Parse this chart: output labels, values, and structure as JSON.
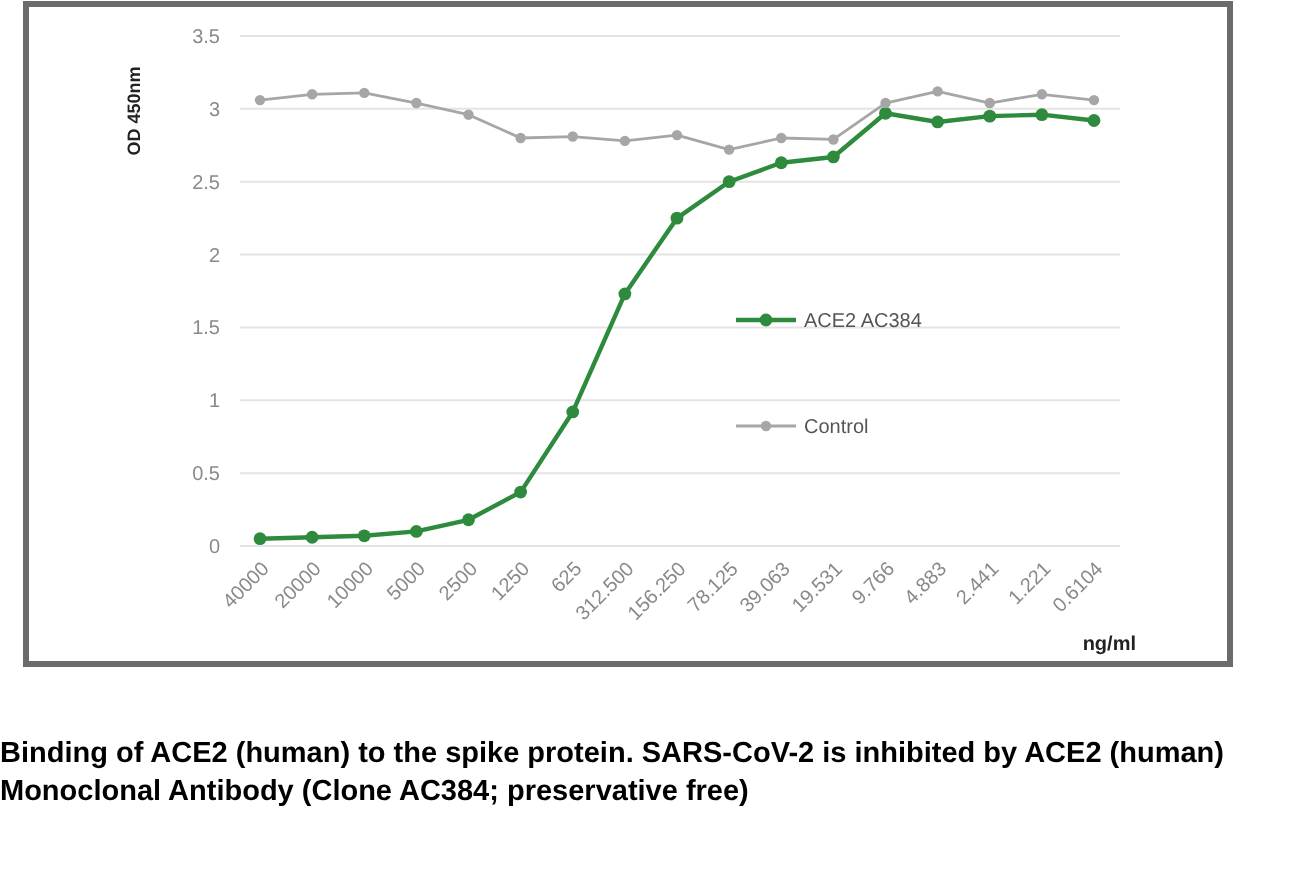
{
  "chart_data": {
    "type": "line",
    "xlabel": "ng/ml",
    "ylabel": "OD 450nm",
    "categories": [
      "40000",
      "20000",
      "10000",
      "5000",
      "2500",
      "1250",
      "625",
      "312.500",
      "156.250",
      "78.125",
      "39.063",
      "19.531",
      "9.766",
      "4.883",
      "2.441",
      "1.221",
      "0.6104"
    ],
    "series": [
      {
        "name": "ACE2 AC384",
        "color": "#2e8b3e",
        "values": [
          0.05,
          0.06,
          0.07,
          0.1,
          0.18,
          0.37,
          0.92,
          1.73,
          2.25,
          2.5,
          2.63,
          2.67,
          2.97,
          2.91,
          2.95,
          2.96,
          2.92
        ]
      },
      {
        "name": "Control",
        "color": "#a6a6a6",
        "values": [
          3.06,
          3.1,
          3.11,
          3.04,
          2.96,
          2.8,
          2.81,
          2.78,
          2.82,
          2.72,
          2.8,
          2.79,
          3.04,
          3.12,
          3.04,
          3.1,
          3.06
        ]
      }
    ],
    "ylim": [
      0,
      3.5
    ],
    "yticks": [
      0,
      0.5,
      1,
      1.5,
      2,
      2.5,
      3,
      3.5
    ],
    "grid": "y",
    "legend": "right",
    "marker": "circle",
    "line_style": "solid",
    "annotations": [
      "Binding of ACE2 (human) to the spike protein. SARS-CoV-2 is inhibited by ACE2 (human) Monoclonal Antibody (Clone AC384; preservative free)"
    ]
  }
}
